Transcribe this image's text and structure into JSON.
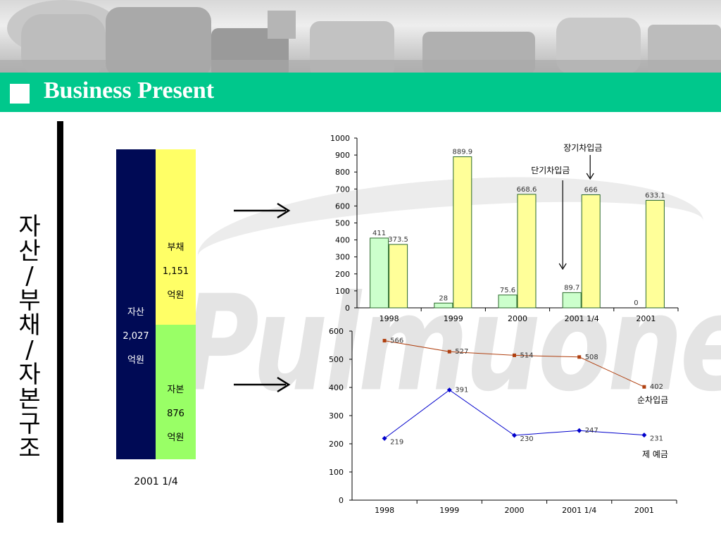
{
  "title": "Business Present",
  "side_title": "자산/부채/자본구조",
  "stack": {
    "asset": {
      "label": "자산",
      "value": "2,027",
      "unit": "억원"
    },
    "liability": {
      "label": "부채",
      "value": "1,151",
      "unit": "억원"
    },
    "equity": {
      "label": "자본",
      "value": "876",
      "unit": "억원"
    },
    "date": "2001 1/4",
    "colors": {
      "asset": "#000a55",
      "liability": "#ffff66",
      "equity": "#99ff66"
    }
  },
  "watermark": "Pulmuone",
  "chart_data": [
    {
      "type": "bar",
      "categories": [
        "1998",
        "1999",
        "2000",
        "2001 1/4",
        "2001"
      ],
      "series": [
        {
          "name": "단기차입금",
          "values": [
            411,
            28,
            75.6,
            89.7,
            0
          ],
          "labels": [
            "411",
            "28",
            "75.6",
            "89.7",
            "0"
          ],
          "color": "#ccffcc"
        },
        {
          "name": "장기차입금",
          "values": [
            373.5,
            889.9,
            668.6,
            666,
            633.1
          ],
          "labels": [
            "373.5",
            "889.9",
            "668.6",
            "666",
            "633.1"
          ],
          "color": "#ffff99"
        }
      ],
      "ylim": [
        0,
        1000
      ],
      "yticks": [
        "0",
        "100",
        "200",
        "300",
        "400",
        "500",
        "600",
        "700",
        "800",
        "900",
        "1000"
      ],
      "grid": false,
      "annotations": [
        "장기차입금",
        "단기차입금"
      ]
    },
    {
      "type": "line",
      "categories": [
        "1998",
        "1999",
        "2000",
        "2001 1/4",
        "2001"
      ],
      "series": [
        {
          "name": "순차입금",
          "values": [
            566,
            527,
            514,
            508,
            402
          ],
          "labels": [
            "566",
            "527",
            "514",
            "508",
            "402"
          ],
          "color": "#b04010"
        },
        {
          "name": "제 예금",
          "values": [
            219,
            391,
            230,
            247,
            231
          ],
          "labels": [
            "219",
            "391",
            "230",
            "247",
            "231"
          ],
          "color": "#0000cc"
        }
      ],
      "ylim": [
        0,
        600
      ],
      "yticks": [
        "0",
        "100",
        "200",
        "300",
        "400",
        "500",
        "600"
      ],
      "grid": false
    }
  ]
}
